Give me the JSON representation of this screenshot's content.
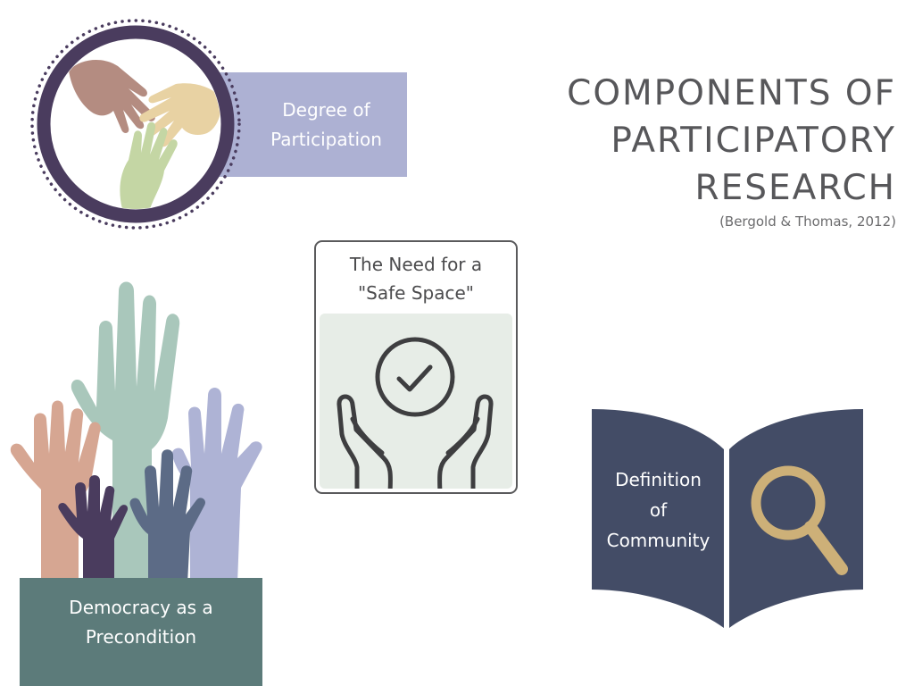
{
  "title": {
    "lines": [
      "COMPONENTS OF",
      "PARTICIPATORY",
      "RESEARCH"
    ],
    "citation": "(Bergold & Thomas, 2012)"
  },
  "components": {
    "degree_of_participation": {
      "lines": [
        "Degree of",
        "Participation"
      ]
    },
    "safe_space": {
      "lines": [
        "The Need for a",
        "\"Safe Space\""
      ]
    },
    "democracy": {
      "lines": [
        "Democracy as a",
        "Precondition"
      ]
    },
    "community": {
      "lines": [
        "Definition",
        "of",
        "Community"
      ]
    }
  },
  "icons": {
    "participation": "three-hands-icon",
    "safe_space": "hands-holding-check-icon",
    "democracy": "raised-hands-icon",
    "community": "book-magnifier-icon"
  },
  "colors": {
    "title": "#57575a",
    "participation_box": "#adb1d3",
    "ring": "#4a3c5e",
    "safe_bg": "#e7ede7",
    "democracy_box": "#5c7b7a",
    "book": "#434c66",
    "magnifier": "#cdb078"
  }
}
